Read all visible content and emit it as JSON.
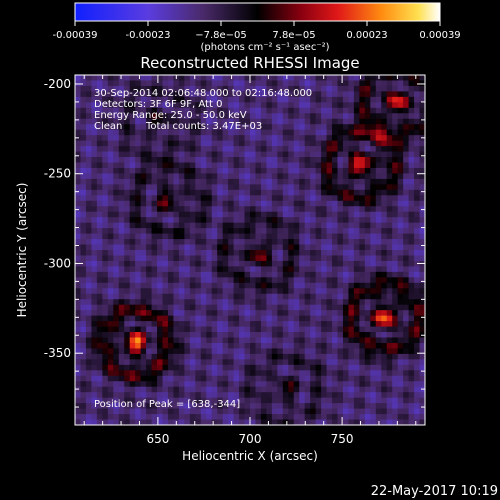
{
  "chart_data": {
    "type": "heatmap",
    "title": "Reconstructed RHESSI Image",
    "xlabel": "Heliocentric X (arcsec)",
    "ylabel": "Heliocentric Y (arcsec)",
    "xlim": [
      605,
      795
    ],
    "ylim": [
      -390,
      -195
    ],
    "xticks": [
      650,
      700,
      750
    ],
    "yticks": [
      -200,
      -250,
      -300,
      -350
    ],
    "colorbar": {
      "colormap": "blue-purple-black-red-orange-yellow-white",
      "ticks": [
        "-0.00039",
        "-0.00023",
        "−7.8e−05",
        "7.8e−05",
        "0.00023",
        "0.00039"
      ],
      "range": [
        -0.00039,
        0.00039
      ],
      "unit_label": "(photons cm⁻² s⁻¹ asec⁻²)"
    },
    "annotations": {
      "time_range": "30-Sep-2014 02:06:48.000 to 02:16:48.000",
      "detectors": "Detectors: 3F 6F 9F, Att 0",
      "energy": "Energy Range: 25.0 - 50.0 keV",
      "clean": "Clean",
      "total_counts": "Total counts: 3.47E+03",
      "peak": "Position of Peak = [638,-344]"
    },
    "peak": {
      "x": 638,
      "y": -344
    },
    "sources": [
      {
        "x": 638,
        "y": -344,
        "strength": 1.0
      },
      {
        "x": 773,
        "y": -330,
        "strength": 0.95
      },
      {
        "x": 760,
        "y": -245,
        "strength": 0.85
      },
      {
        "x": 780,
        "y": -210,
        "strength": 0.8
      },
      {
        "x": 705,
        "y": -295,
        "strength": 0.55
      },
      {
        "x": 655,
        "y": -265,
        "strength": 0.5
      },
      {
        "x": 650,
        "y": -220,
        "strength": 0.35
      },
      {
        "x": 720,
        "y": -370,
        "strength": 0.4
      }
    ]
  },
  "footer": {
    "timestamp": "22-May-2017 10:19"
  }
}
